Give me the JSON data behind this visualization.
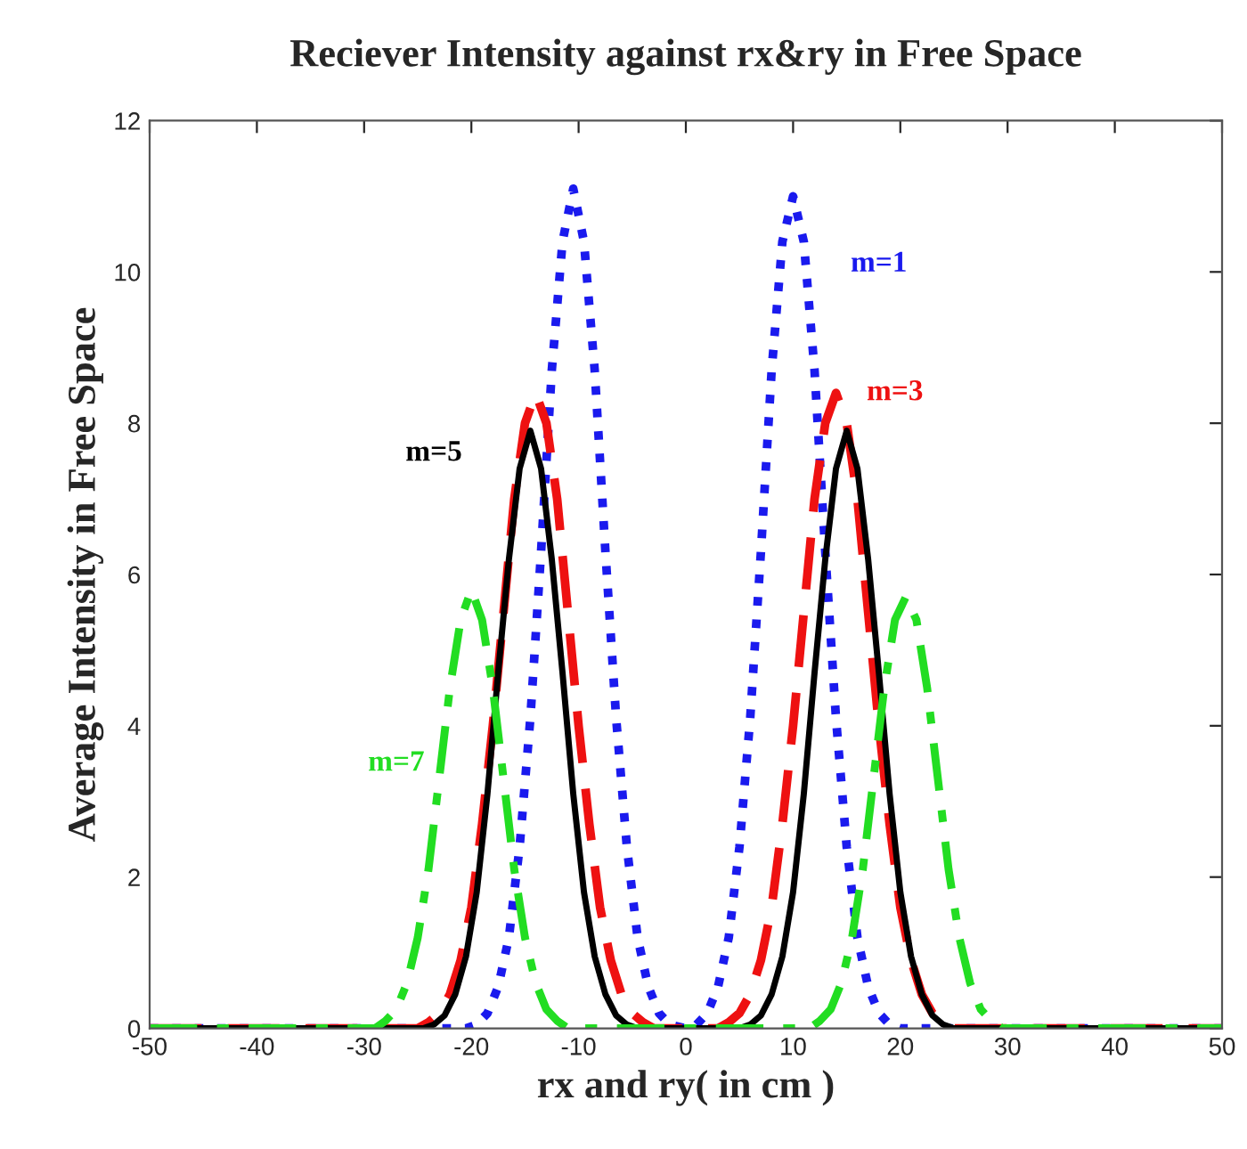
{
  "chart_data": {
    "type": "line",
    "title": "Reciever Intensity against rx&ry in Free Space",
    "xlabel": "rx and ry( in cm )",
    "ylabel": "Average Intensity in Free Space",
    "xlim": [
      -50,
      50
    ],
    "ylim": [
      0,
      12
    ],
    "xticks": [
      -50,
      -40,
      -30,
      -20,
      -10,
      0,
      10,
      20,
      30,
      40,
      50
    ],
    "yticks": [
      0,
      2,
      4,
      6,
      8,
      10,
      12
    ],
    "grid": false,
    "legend": false,
    "marker": "none",
    "series": [
      {
        "name": "m=1",
        "color": "#1a1aee",
        "line_style": "dotted",
        "x": [
          -50,
          -20.5,
          -19.5,
          -18.5,
          -17.5,
          -16.5,
          -15.5,
          -14.5,
          -13.5,
          -12.5,
          -11.5,
          -10.5,
          -9.5,
          -8.5,
          -7.5,
          -6.5,
          -5.5,
          -4.5,
          -3.5,
          -2.5,
          -1.5,
          0,
          1,
          2,
          3,
          4,
          5,
          6,
          7,
          8,
          9,
          10,
          11,
          12,
          13,
          14,
          15,
          16,
          17,
          18,
          19,
          20,
          50
        ],
        "values": [
          0,
          0,
          0.05,
          0.2,
          0.55,
          1.2,
          2.4,
          4.1,
          6.3,
          8.7,
          10.4,
          11.1,
          10.4,
          8.7,
          6.3,
          4.1,
          2.4,
          1.2,
          0.55,
          0.2,
          0.05,
          0,
          0.05,
          0.2,
          0.55,
          1.2,
          2.4,
          4.1,
          6.3,
          8.7,
          10.4,
          11.0,
          10.4,
          8.7,
          6.3,
          4.1,
          2.4,
          1.2,
          0.55,
          0.2,
          0.05,
          0,
          0
        ]
      },
      {
        "name": "m=3",
        "color": "#ee1111",
        "line_style": "dashed",
        "x": [
          -50,
          -25,
          -24,
          -23,
          -22,
          -21,
          -20,
          -19,
          -18,
          -17,
          -16,
          -15,
          -14,
          -13,
          -12,
          -11,
          -10,
          -9,
          -8,
          -7,
          -6,
          -5,
          -4,
          -3,
          0,
          3,
          4,
          5,
          6,
          7,
          8,
          9,
          10,
          11,
          12,
          13,
          14,
          15,
          16,
          17,
          18,
          19,
          20,
          21,
          22,
          23,
          24,
          25,
          50
        ],
        "values": [
          0,
          0,
          0.08,
          0.2,
          0.45,
          0.9,
          1.6,
          2.7,
          4.0,
          5.5,
          7.0,
          8.0,
          8.4,
          8.0,
          7.0,
          5.5,
          4.0,
          2.7,
          1.6,
          0.9,
          0.45,
          0.2,
          0.08,
          0,
          0,
          0,
          0.08,
          0.2,
          0.45,
          0.9,
          1.6,
          2.7,
          4.0,
          5.5,
          7.0,
          8.0,
          8.4,
          8.0,
          7.0,
          5.5,
          4.0,
          2.7,
          1.6,
          0.9,
          0.45,
          0.2,
          0.08,
          0,
          0
        ]
      },
      {
        "name": "m=5",
        "color": "#000000",
        "line_style": "solid",
        "x": [
          -50,
          -24.5,
          -23.5,
          -22.5,
          -21.5,
          -20.5,
          -19.5,
          -18.5,
          -17.5,
          -16.5,
          -15.5,
          -14.5,
          -13.5,
          -12.5,
          -11.5,
          -10.5,
          -9.5,
          -8.5,
          -7.5,
          -6.5,
          -5.5,
          -4.5,
          0,
          5,
          6,
          7,
          8,
          9,
          10,
          11,
          12,
          13,
          14,
          15,
          16,
          17,
          18,
          19,
          20,
          21,
          22,
          23,
          24,
          25,
          50
        ],
        "values": [
          0,
          0,
          0.05,
          0.17,
          0.45,
          0.95,
          1.8,
          3.1,
          4.7,
          6.2,
          7.4,
          7.9,
          7.4,
          6.2,
          4.7,
          3.1,
          1.8,
          0.95,
          0.45,
          0.17,
          0.05,
          0,
          0,
          0,
          0.05,
          0.17,
          0.45,
          0.95,
          1.8,
          3.1,
          4.7,
          6.2,
          7.4,
          7.9,
          7.4,
          6.2,
          4.7,
          3.1,
          1.8,
          0.95,
          0.45,
          0.17,
          0.05,
          0,
          0
        ]
      },
      {
        "name": "m=7",
        "color": "#22dd22",
        "line_style": "dashdot",
        "x": [
          -50,
          -29,
          -28,
          -27,
          -26,
          -25,
          -24,
          -23,
          -22,
          -21,
          -20,
          -19,
          -18,
          -17,
          -16,
          -15,
          -14,
          -13,
          -12,
          -11,
          0,
          11.5,
          12.5,
          13.5,
          14.5,
          15.5,
          16.5,
          17.5,
          18.5,
          19.5,
          20.5,
          21.5,
          22.5,
          23.5,
          24.5,
          25.5,
          26.5,
          27.5,
          28.5,
          29.5,
          50
        ],
        "values": [
          0,
          0,
          0.1,
          0.25,
          0.6,
          1.2,
          2.1,
          3.3,
          4.5,
          5.4,
          5.8,
          5.4,
          4.5,
          3.3,
          2.1,
          1.2,
          0.6,
          0.25,
          0.1,
          0,
          0,
          0,
          0.1,
          0.25,
          0.6,
          1.2,
          2.1,
          3.3,
          4.5,
          5.4,
          5.7,
          5.4,
          4.5,
          3.3,
          2.1,
          1.2,
          0.6,
          0.25,
          0.1,
          0,
          0
        ]
      }
    ]
  }
}
